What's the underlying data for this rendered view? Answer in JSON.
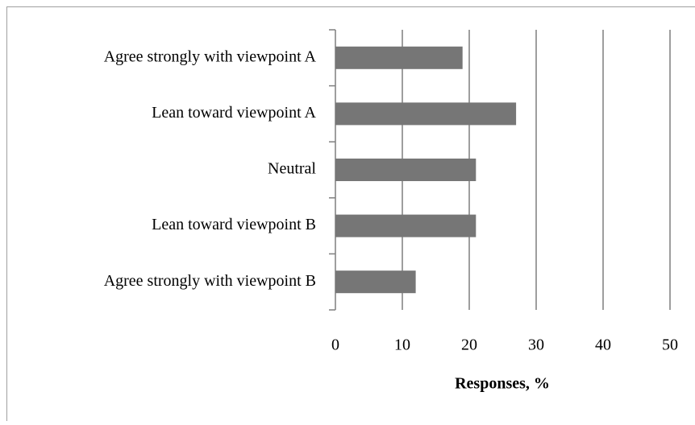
{
  "chart_data": {
    "type": "hbar",
    "categories": [
      "Agree strongly with viewpoint A",
      "Lean toward viewpoint A",
      "Neutral",
      "Lean toward viewpoint B",
      "Agree strongly with viewpoint B"
    ],
    "values": [
      19,
      27,
      21,
      21,
      12
    ],
    "color": "#767676",
    "xlim": [
      0,
      50
    ],
    "xticks": [
      0,
      10,
      20,
      30,
      40,
      50
    ],
    "x_label": "Responses, %",
    "grid": true
  }
}
